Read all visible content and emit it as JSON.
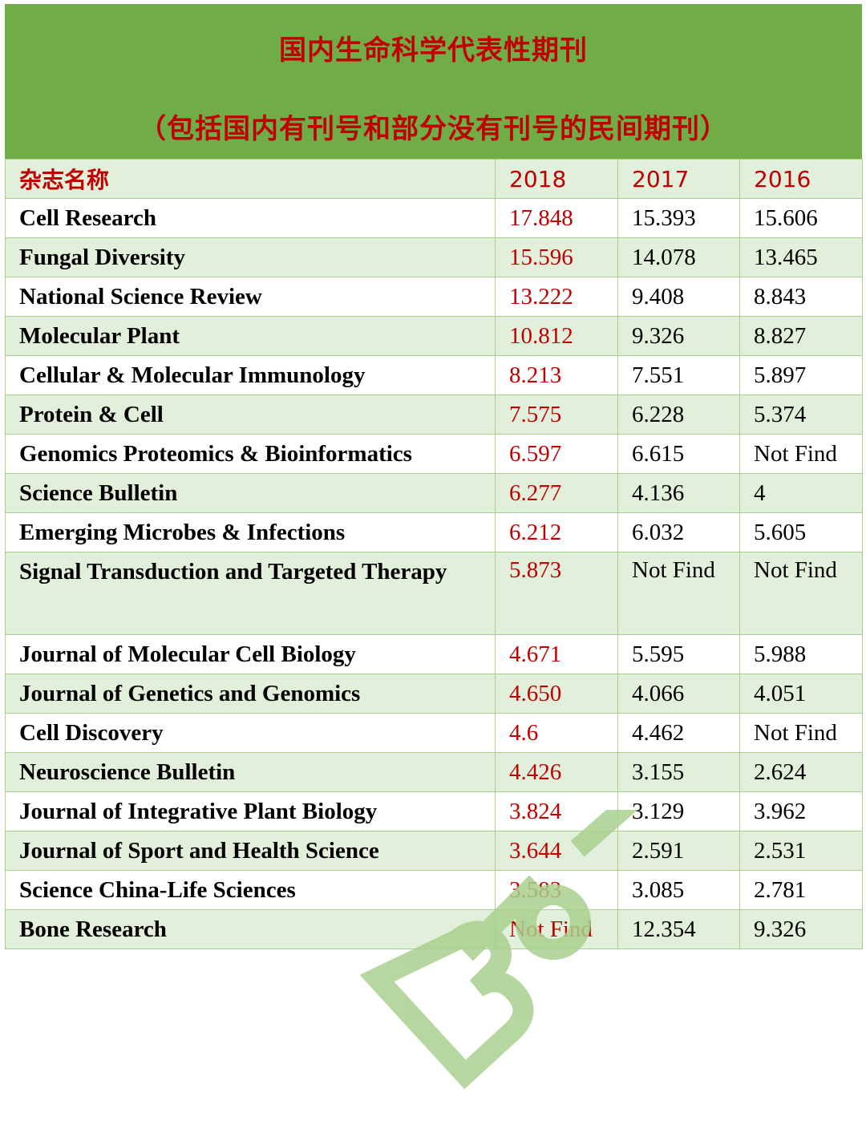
{
  "header": {
    "title": "国内生命科学代表性期刊",
    "subtitle": "（包括国内有刊号和部分没有刊号的民间期刊）"
  },
  "table": {
    "columns": [
      "杂志名称",
      "2018",
      "2017",
      "2016"
    ],
    "rows": [
      {
        "name": "Cell Research",
        "y2018": "17.848",
        "y2017": "15.393",
        "y2016": "15.606"
      },
      {
        "name": "Fungal Diversity",
        "y2018": "15.596",
        "y2017": "14.078",
        "y2016": "13.465"
      },
      {
        "name": "National Science Review",
        "y2018": "13.222",
        "y2017": "9.408",
        "y2016": "8.843"
      },
      {
        "name": "Molecular Plant",
        "y2018": "10.812",
        "y2017": "9.326",
        "y2016": "8.827"
      },
      {
        "name": "Cellular & Molecular Immunology",
        "y2018": "8.213",
        "y2017": "7.551",
        "y2016": "5.897"
      },
      {
        "name": "Protein & Cell",
        "y2018": "7.575",
        "y2017": "6.228",
        "y2016": "5.374"
      },
      {
        "name": "Genomics Proteomics & Bioinformatics",
        "y2018": "6.597",
        "y2017": "6.615",
        "y2016": "Not Find"
      },
      {
        "name": "Science Bulletin",
        "y2018": "6.277",
        "y2017": "4.136",
        "y2016": "4"
      },
      {
        "name": "Emerging Microbes & Infections",
        "y2018": "6.212",
        "y2017": "6.032",
        "y2016": "5.605"
      },
      {
        "name": "Signal Transduction and Targeted Therapy",
        "y2018": "5.873",
        "y2017": "Not Find",
        "y2016": "Not Find"
      },
      {
        "name": "Journal of Molecular Cell Biology",
        "y2018": "4.671",
        "y2017": "5.595",
        "y2016": "5.988"
      },
      {
        "name": "Journal of Genetics and Genomics",
        "y2018": "4.650",
        "y2017": "4.066",
        "y2016": "4.051"
      },
      {
        "name": "Cell Discovery",
        "y2018": "4.6",
        "y2017": "4.462",
        "y2016": "Not Find"
      },
      {
        "name": "Neuroscience Bulletin",
        "y2018": "4.426",
        "y2017": "3.155",
        "y2016": "2.624"
      },
      {
        "name": "Journal of Integrative Plant Biology",
        "y2018": "3.824",
        "y2017": "3.129",
        "y2016": "3.962"
      },
      {
        "name": "Journal of Sport and Health Science",
        "y2018": "3.644",
        "y2017": "2.591",
        "y2016": "2.531"
      },
      {
        "name": "Science China-Life Sciences",
        "y2018": "3.583",
        "y2017": "3.085",
        "y2016": "2.781"
      },
      {
        "name": "Bone Research",
        "y2018": "Not Find",
        "y2017": "12.354",
        "y2016": "9.326"
      }
    ]
  },
  "watermark": {
    "text": "BioArt",
    "color": "#a9d08e"
  },
  "colors": {
    "header_bg": "#70ad47",
    "accent_red": "#c00000",
    "row_green": "#e2efda",
    "border": "#a9d08e"
  }
}
